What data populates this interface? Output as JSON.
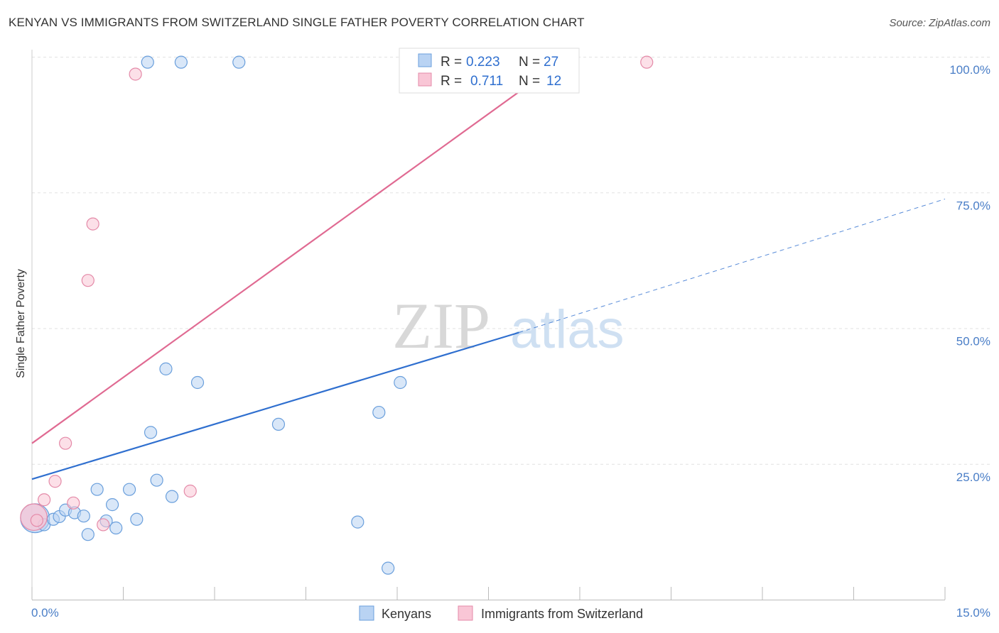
{
  "title": "KENYAN VS IMMIGRANTS FROM SWITZERLAND SINGLE FATHER POVERTY CORRELATION CHART",
  "source": "Source: ZipAtlas.com",
  "watermark": {
    "zip": "ZIP",
    "atlas": "atlas"
  },
  "legend": {
    "rows": [
      {
        "r_label": "R =",
        "r_value": "0.223",
        "n_label": "N =",
        "n_value": "27",
        "fill": "#b9d3f3",
        "stroke": "#6a9fdc"
      },
      {
        "r_label": "R =",
        "r_value": "0.711",
        "n_label": "N =",
        "n_value": "12",
        "fill": "#f9c6d6",
        "stroke": "#e48aa8"
      }
    ]
  },
  "chart_data": {
    "type": "scatter",
    "title": "KENYAN VS IMMIGRANTS FROM SWITZERLAND SINGLE FATHER POVERTY CORRELATION CHART",
    "xlabel": "",
    "ylabel": "Single Father Poverty",
    "xlim": [
      0,
      15
    ],
    "ylim": [
      0,
      100
    ],
    "x_tick_labels": [
      "0.0%",
      "15.0%"
    ],
    "y_ticks": [
      25,
      50,
      75,
      100
    ],
    "y_tick_labels": [
      "25.0%",
      "50.0%",
      "75.0%",
      "100.0%"
    ],
    "grid": true,
    "legend_placement": "top-center",
    "series": [
      {
        "name": "Kenyans",
        "color": "#6a9fdc",
        "fill": "#b9d3f3",
        "line_color": "#2f6fcf",
        "trend": {
          "x0": 0,
          "y0": 22.2,
          "x1": 8.0,
          "y1": 49.2,
          "dashed_to_x": 15,
          "dashed_to_y": 73.8
        },
        "points": [
          [
            0.05,
            15.0
          ],
          [
            0.2,
            13.8
          ],
          [
            0.35,
            14.8
          ],
          [
            0.45,
            15.3
          ],
          [
            0.55,
            16.5
          ],
          [
            0.7,
            16.0
          ],
          [
            0.85,
            15.4
          ],
          [
            0.92,
            12.0
          ],
          [
            1.07,
            20.3
          ],
          [
            1.22,
            14.5
          ],
          [
            1.32,
            17.5
          ],
          [
            1.38,
            13.2
          ],
          [
            1.6,
            20.3
          ],
          [
            1.72,
            14.8
          ],
          [
            1.9,
            99.0
          ],
          [
            1.95,
            30.8
          ],
          [
            2.05,
            22.0
          ],
          [
            2.2,
            42.5
          ],
          [
            2.3,
            19.0
          ],
          [
            2.45,
            99.0
          ],
          [
            2.72,
            40.0
          ],
          [
            3.4,
            99.0
          ],
          [
            4.05,
            32.3
          ],
          [
            5.35,
            14.3
          ],
          [
            5.7,
            34.5
          ],
          [
            5.85,
            5.8
          ],
          [
            6.05,
            40.0
          ]
        ],
        "sizes": [
          2.4,
          1,
          1,
          1,
          1,
          1,
          1,
          1,
          1,
          1,
          1,
          1,
          1,
          1,
          1,
          1,
          1,
          1,
          1,
          1,
          1,
          1,
          1,
          1,
          1,
          1,
          1
        ]
      },
      {
        "name": "Immigrants from Switzerland",
        "color": "#e48aa8",
        "fill": "#f9c6d6",
        "line_color": "#e06a92",
        "trend": {
          "x0": 0,
          "y0": 28.8,
          "x1": 8.8,
          "y1": 100.0
        },
        "points": [
          [
            0.03,
            15.2
          ],
          [
            0.2,
            18.4
          ],
          [
            0.38,
            21.8
          ],
          [
            0.55,
            28.8
          ],
          [
            0.68,
            17.8
          ],
          [
            0.92,
            58.8
          ],
          [
            1.0,
            69.2
          ],
          [
            1.17,
            13.8
          ],
          [
            1.7,
            96.8
          ],
          [
            2.6,
            20.0
          ],
          [
            10.1,
            99.0
          ],
          [
            0.08,
            14.6
          ]
        ],
        "sizes": [
          2.2,
          1,
          1,
          1,
          1,
          1,
          1,
          1,
          1,
          1,
          1,
          1
        ]
      }
    ]
  }
}
